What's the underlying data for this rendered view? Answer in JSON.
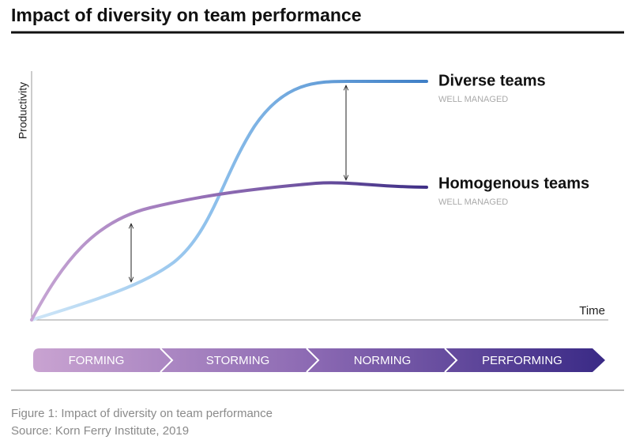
{
  "title": "Impact of diversity on team performance",
  "axes": {
    "y_label": "Productivity",
    "x_label": "Time"
  },
  "curves": [
    {
      "label": "Diverse teams",
      "note": "WELL MANAGED"
    },
    {
      "label": "Homogenous teams",
      "note": "WELL MANAGED"
    }
  ],
  "stages": [
    "FORMING",
    "STORMING",
    "NORMING",
    "PERFORMING"
  ],
  "caption": {
    "figure": "Figure 1: Impact of diversity on team performance",
    "source": "Source: Korn Ferry Institute, 2019"
  }
}
